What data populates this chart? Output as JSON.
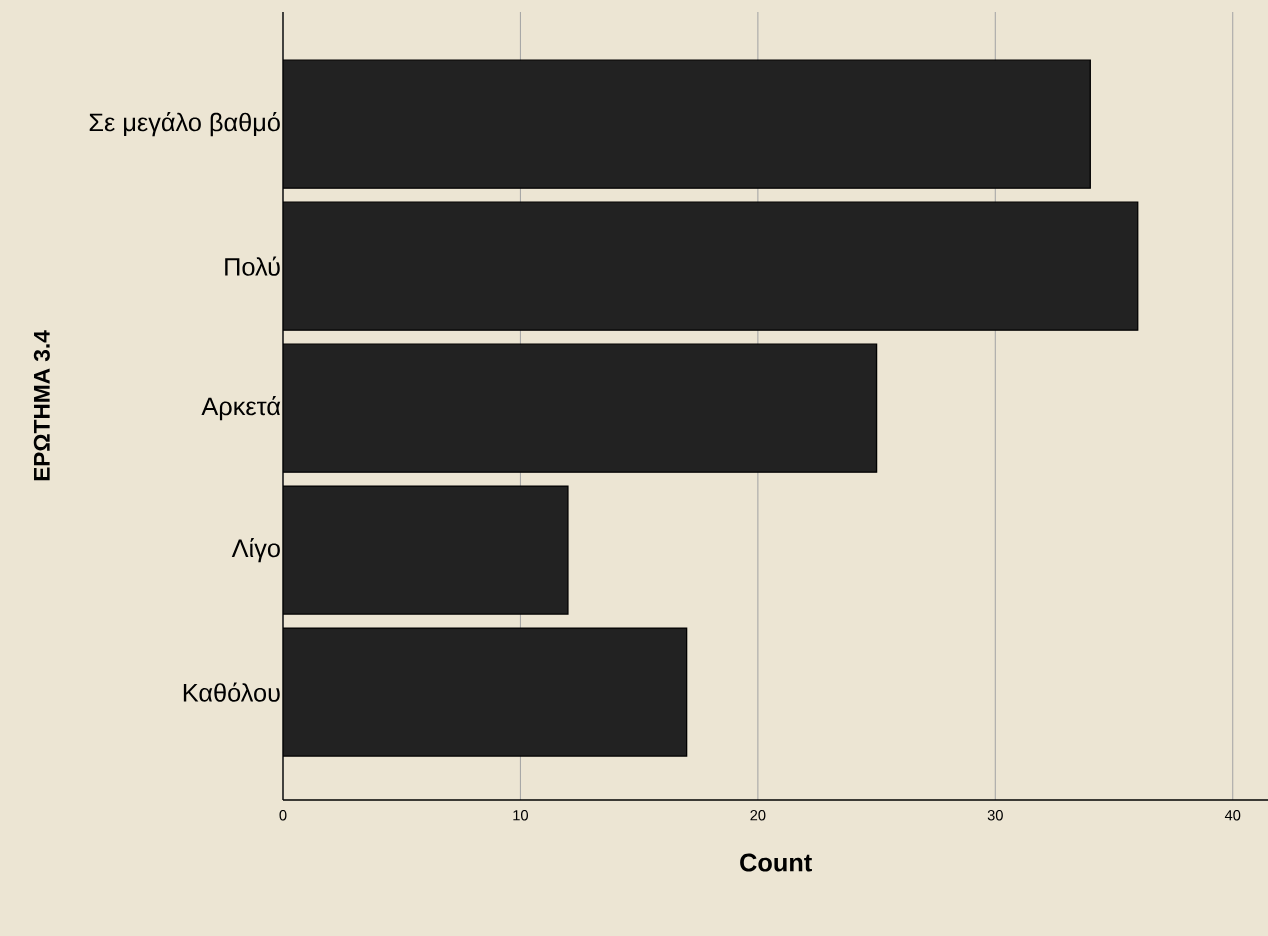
{
  "chart_data": {
    "type": "bar",
    "orientation": "horizontal",
    "categories": [
      "Σε μεγάλο βαθμό",
      "Πολύ",
      "Αρκετά",
      "Λίγο",
      "Καθόλου"
    ],
    "values": [
      34,
      36,
      25,
      12,
      17
    ],
    "color": "#222222",
    "xlabel": "Count",
    "ylabel": "ΕΡΩΤΗΜΑ 3.4",
    "xlim": [
      0,
      41.5
    ],
    "xticks": [
      0,
      10,
      20,
      30,
      40
    ],
    "grid": "x"
  }
}
